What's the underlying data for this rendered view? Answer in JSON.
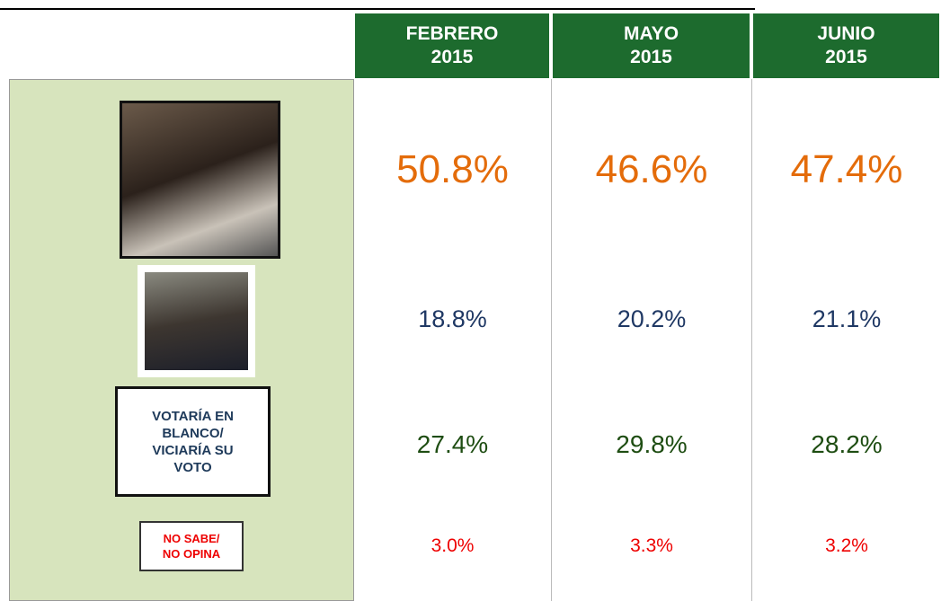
{
  "table": {
    "headers": [
      {
        "month": "FEBRERO",
        "year": "2015"
      },
      {
        "month": "MAYO",
        "year": "2015"
      },
      {
        "month": "JUNIO",
        "year": "2015"
      }
    ],
    "rows": [
      {
        "values": [
          "50.8%",
          "46.6%",
          "47.4%"
        ]
      },
      {
        "values": [
          "18.8%",
          "20.2%",
          "21.1%"
        ]
      },
      {
        "label": [
          "VOTARÍA EN",
          "BLANCO/",
          "VICIARÍA SU",
          "VOTO"
        ],
        "values": [
          "27.4%",
          "29.8%",
          "28.2%"
        ]
      },
      {
        "label": [
          "NO SABE/",
          "NO OPINA"
        ],
        "values": [
          "3.0%",
          "3.3%",
          "3.2%"
        ]
      }
    ]
  }
}
